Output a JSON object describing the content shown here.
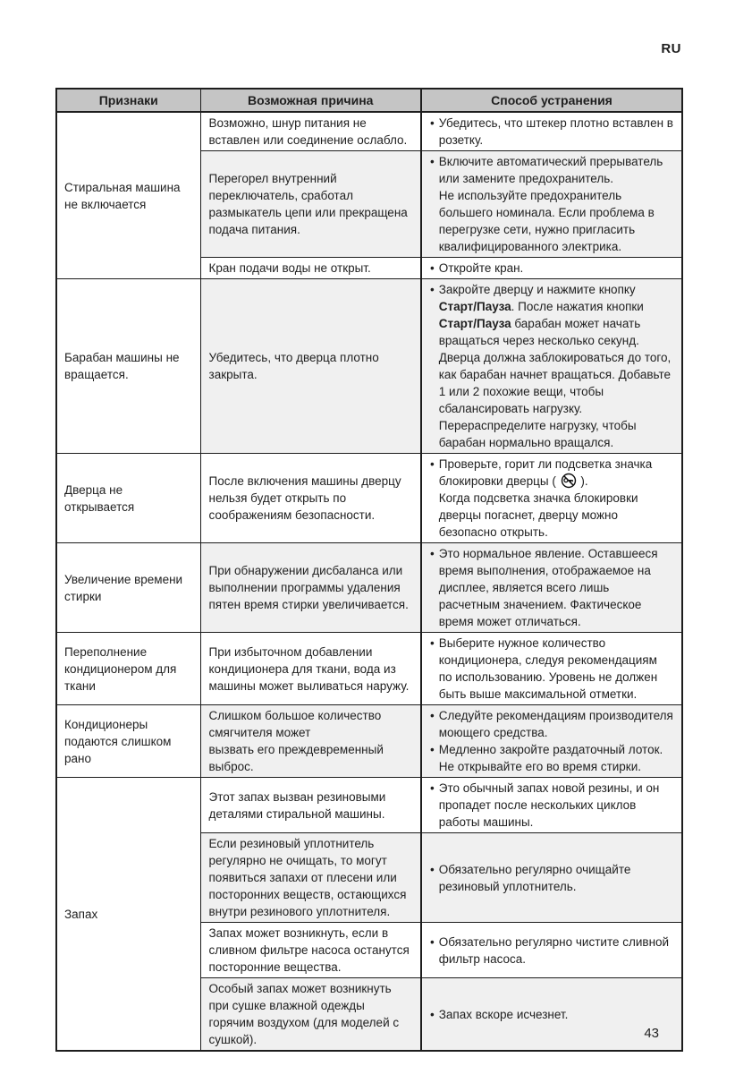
{
  "page": {
    "lang_label": "RU",
    "page_number": "43"
  },
  "table": {
    "headers": [
      "Признаки",
      "Возможная причина",
      "Способ устранения"
    ],
    "colors": {
      "header_bg": "#c5c5c5",
      "row_shade": "#f0f0f0",
      "border": "#1d1d1d",
      "text": "#1f1f1f"
    },
    "icons": {
      "lock": "door-lock-icon"
    },
    "groups": [
      {
        "symptom": "Стиральная машина не включается",
        "rows": [
          {
            "cause": "Возможно, шнур питания не вставлен или соединение ослабло.",
            "remedies": [
              "Убедитесь, что штекер плотно вставлен в розетку."
            ]
          },
          {
            "cause": "Перегорел внутренний переключатель, сработал размыкатель цепи или прекращена подача питания.",
            "remedies": [
              "Включите автоматический прерыватель или замените предохранитель.\nНе используйте предохранитель большего номинала. Если проблема в перегрузке сети, нужно пригласить квалифицированного электрика."
            ]
          },
          {
            "cause": "Кран подачи воды не открыт.",
            "remedies": [
              "Откройте кран."
            ]
          }
        ]
      },
      {
        "symptom": "Барабан машины не вращается.",
        "rows": [
          {
            "cause": "Убедитесь, что дверца плотно закрыта.",
            "remedies": [
              "Закройте дверцу и нажмите кнопку **Старт/Пауза**. После нажатия кнопки **Старт/Пауза** барабан может начать вращаться через несколько секунд. Дверца должна заблокироваться до того, как барабан начнет вращаться. Добавьте 1 или 2 похожие вещи, чтобы сбалансировать нагрузку. Перераспределите нагрузку, чтобы барабан нормально вращался."
            ]
          }
        ]
      },
      {
        "symptom": "Дверца не открывается",
        "rows": [
          {
            "cause": "После включения машины дверцу нельзя будет открыть по соображениям безопасности.",
            "remedies": [
              "Проверьте, горит ли подсветка значка блокировки дверцы ( {lock} ).\nКогда подсветка значка блокировки дверцы погаснет, дверцу можно безопасно открыть."
            ]
          }
        ]
      },
      {
        "symptom": "Увеличение времени стирки",
        "rows": [
          {
            "cause": "При обнаружении дисбаланса или выполнении программы удаления пятен время стирки увеличивается.",
            "remedies": [
              "Это нормальное явление. Оставшееся время выполнения, отображаемое на дисплее, является всего лишь расчетным значением. Фактическое время может отличаться."
            ]
          }
        ]
      },
      {
        "symptom": "Переполнение кондиционером для ткани",
        "rows": [
          {
            "cause": "При избыточном добавлении кондиционера для ткани, вода из машины может выливаться наружу.",
            "remedies": [
              "Выберите нужное количество кондиционера, следуя рекомендациям по использованию. Уровень не должен быть выше максимальной отметки."
            ]
          }
        ]
      },
      {
        "symptom": "Кондиционеры подаются слишком рано",
        "rows": [
          {
            "cause": "Слишком большое количество смягчителя может\nвызвать его преждевременный выброс.",
            "remedies": [
              "Следуйте рекомендациям производителя моющего средства.",
              "Медленно закройте раздаточный лоток.\nНе открывайте его во время стирки."
            ]
          }
        ]
      },
      {
        "symptom": "Запах",
        "rows": [
          {
            "cause": "Этот запах вызван резиновыми деталями стиральной машины.",
            "remedies": [
              "Это обычный запах новой резины, и он пропадет после нескольких циклов работы машины."
            ]
          },
          {
            "cause": "Если резиновый уплотнитель регулярно не очищать, то могут появиться запахи от плесени или посторонних веществ, остающихся внутри резинового уплотнителя.",
            "remedies": [
              "Обязательно регулярно очищайте резиновый уплотнитель."
            ]
          },
          {
            "cause": "Запах может возникнуть, если в сливном фильтре насоса останутся посторонние вещества.",
            "remedies": [
              "Обязательно регулярно чистите сливной фильтр насоса."
            ]
          },
          {
            "cause": "Особый запах может возникнуть при сушке влажной одежды горячим воздухом (для моделей с сушкой).",
            "remedies": [
              "Запах вскоре исчезнет."
            ]
          }
        ]
      }
    ]
  }
}
